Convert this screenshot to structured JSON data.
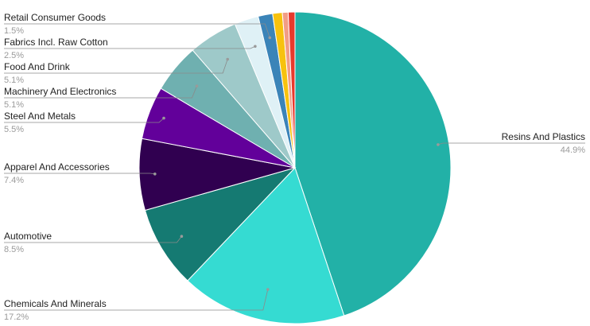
{
  "chart_data": {
    "type": "pie",
    "slices": [
      {
        "label": "Resins And Plastics",
        "value": 44.9,
        "value_label": "44.9%",
        "color": "#22b1a7",
        "labeled": true,
        "side": "right"
      },
      {
        "label": "Chemicals And Minerals",
        "value": 17.2,
        "value_label": "17.2%",
        "color": "#35dbd2",
        "labeled": true,
        "side": "left"
      },
      {
        "label": "Automotive",
        "value": 8.5,
        "value_label": "8.5%",
        "color": "#157a72",
        "labeled": true,
        "side": "left"
      },
      {
        "label": "Apparel And Accessories",
        "value": 7.4,
        "value_label": "7.4%",
        "color": "#300050",
        "labeled": true,
        "side": "left"
      },
      {
        "label": "Steel And Metals",
        "value": 5.5,
        "value_label": "5.5%",
        "color": "#62009a",
        "labeled": true,
        "side": "left"
      },
      {
        "label": "Machinery And Electronics",
        "value": 5.1,
        "value_label": "5.1%",
        "color": "#6fb0b0",
        "labeled": true,
        "side": "left"
      },
      {
        "label": "Food And Drink",
        "value": 5.1,
        "value_label": "5.1%",
        "color": "#9ec9c9",
        "labeled": true,
        "side": "left"
      },
      {
        "label": "Fabrics Incl. Raw Cotton",
        "value": 2.5,
        "value_label": "2.5%",
        "color": "#dff1f6",
        "labeled": true,
        "side": "left"
      },
      {
        "label": "Retail Consumer Goods",
        "value": 1.5,
        "value_label": "1.5%",
        "color": "#3b84b8",
        "labeled": true,
        "side": "left"
      },
      {
        "label": "",
        "value": 1.0,
        "value_label": "",
        "color": "#f7c20e",
        "labeled": false
      },
      {
        "label": "",
        "value": 0.6,
        "value_label": "",
        "color": "#f29d85",
        "labeled": false
      },
      {
        "label": "",
        "value": 0.7,
        "value_label": "",
        "color": "#e8392c",
        "labeled": false
      }
    ],
    "legend": "none"
  }
}
